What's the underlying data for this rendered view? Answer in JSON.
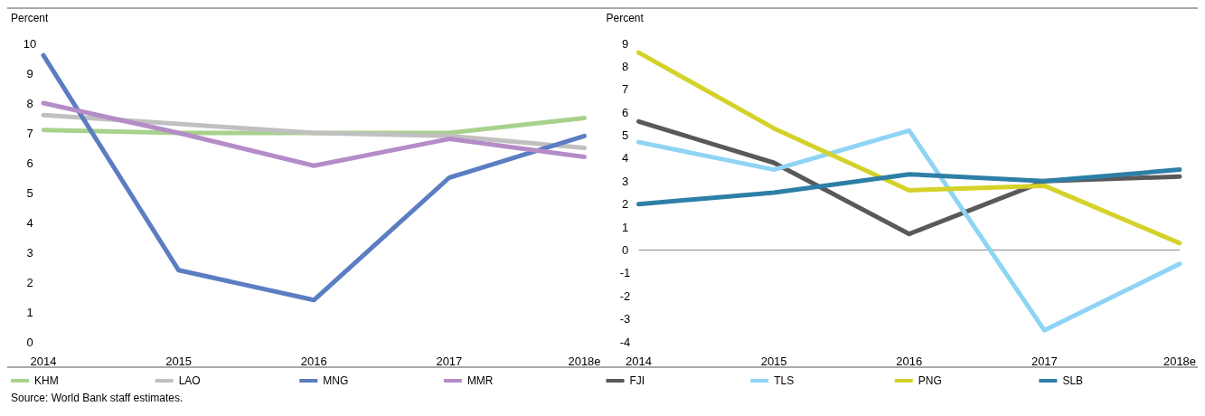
{
  "chart_data": [
    {
      "type": "line",
      "ylabel": "Percent",
      "categories": [
        "2014",
        "2015",
        "2016",
        "2017",
        "2018e"
      ],
      "ylim": [
        0,
        10
      ],
      "yticks": [
        0,
        1,
        2,
        3,
        4,
        5,
        6,
        7,
        8,
        9,
        10
      ],
      "grid": false,
      "legend": "bottom",
      "line_style": "solid",
      "series": [
        {
          "name": "KHM",
          "color": "#a9d18e",
          "values": [
            7.1,
            7.0,
            7.0,
            7.0,
            7.5
          ]
        },
        {
          "name": "LAO",
          "color": "#c0c0c0",
          "values": [
            7.6,
            7.3,
            7.0,
            6.9,
            6.5
          ]
        },
        {
          "name": "MNG",
          "color": "#5b7dc2",
          "values": [
            9.6,
            2.4,
            1.4,
            5.5,
            6.9
          ]
        },
        {
          "name": "MMR",
          "color": "#b48cc8",
          "values": [
            8.0,
            7.0,
            5.9,
            6.8,
            6.2
          ]
        }
      ]
    },
    {
      "type": "line",
      "ylabel": "Percent",
      "categories": [
        "2014",
        "2015",
        "2016",
        "2017",
        "2018e"
      ],
      "ylim": [
        -4,
        9
      ],
      "yticks": [
        -4,
        -3,
        -2,
        -1,
        0,
        1,
        2,
        3,
        4,
        5,
        6,
        7,
        8,
        9
      ],
      "grid": false,
      "legend": "bottom",
      "line_style": "solid",
      "ref_lines": [
        {
          "axis": "y",
          "value": 0
        }
      ],
      "annotations": [
        "Source: World Bank staff estimates."
      ],
      "series": [
        {
          "name": "FJI",
          "color": "#59595b",
          "values": [
            5.6,
            3.8,
            0.7,
            3.0,
            3.2
          ]
        },
        {
          "name": "TLS",
          "color": "#8fd4f5",
          "values": [
            4.7,
            3.5,
            5.2,
            -3.5,
            -0.6
          ]
        },
        {
          "name": "PNG",
          "color": "#d4d22a",
          "values": [
            8.6,
            5.3,
            2.6,
            2.8,
            0.3
          ]
        },
        {
          "name": "SLB",
          "color": "#2e7fa6",
          "values": [
            2.0,
            2.5,
            3.3,
            3.0,
            3.5
          ]
        }
      ]
    }
  ]
}
